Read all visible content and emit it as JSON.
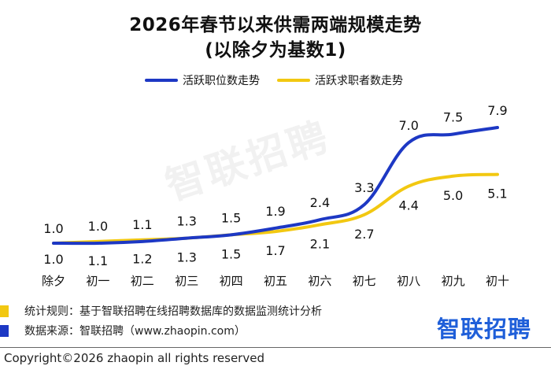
{
  "chart_data": {
    "type": "line",
    "title": "2026年春节以来供需两端规模走势",
    "subtitle": "(以除夕为基数1)",
    "categories": [
      "除夕",
      "初一",
      "初二",
      "初三",
      "初四",
      "初五",
      "初六",
      "初七",
      "初八",
      "初九",
      "初十"
    ],
    "series": [
      {
        "name": "活跃职位数走势",
        "color": "#1d38c4",
        "values": [
          1.0,
          1.0,
          1.1,
          1.3,
          1.5,
          1.9,
          2.4,
          3.3,
          7.0,
          7.5,
          7.9
        ]
      },
      {
        "name": "活跃求职者数走势",
        "color": "#f2c811",
        "values": [
          1.0,
          1.1,
          1.2,
          1.3,
          1.5,
          1.7,
          2.1,
          2.7,
          4.4,
          5.0,
          5.1
        ]
      }
    ],
    "xlabel": "",
    "ylabel": "",
    "ylim": [
      0,
      9
    ],
    "grid": false,
    "legend_position": "top-center"
  },
  "watermark": "智联招聘",
  "footer": {
    "rule_label": "统计规则：基于智联招聘在线招聘数据库的数据监测统计分析",
    "source_label": "数据来源：智联招聘（www.zhaopin.com）",
    "brand": "智联招聘",
    "copyright": "Copyright©2026 zhaopin all rights reserved",
    "rule_color": "#f2c811",
    "source_color": "#1d38c4"
  }
}
